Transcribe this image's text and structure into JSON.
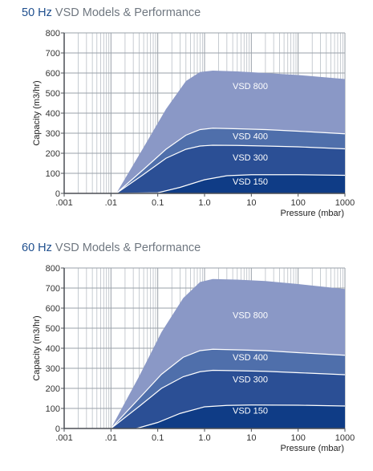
{
  "charts": [
    {
      "title_hz": "50 Hz",
      "title_rest": "VSD Models & Performance",
      "chart_data": {
        "type": "area",
        "title": "50 Hz VSD Models & Performance",
        "xlabel": "Pressure (mbar)",
        "ylabel": "Capacity (m3/hr)",
        "xscale": "log",
        "xlim": [
          0.001,
          1000
        ],
        "ylim": [
          0,
          800
        ],
        "xticks": [
          ".001",
          ".01",
          "0.1",
          "1.0",
          "10",
          "100",
          "1000"
        ],
        "yticks": [
          "0",
          "100",
          "200",
          "300",
          "400",
          "500",
          "600",
          "700",
          "800"
        ],
        "grid": true,
        "series": [
          {
            "name": "VSD 800",
            "color": "#8a98c6",
            "x": [
              0.013,
              0.05,
              0.15,
              0.4,
              0.8,
              1.5,
              5,
              20,
              100,
              1000
            ],
            "y": [
              0,
              230,
              420,
              560,
              605,
              612,
              608,
              600,
              590,
              570
            ]
          },
          {
            "name": "VSD 400",
            "color": "#4f6fab",
            "x": [
              0.013,
              0.05,
              0.15,
              0.4,
              0.8,
              1.5,
              5,
              20,
              100,
              1000
            ],
            "y": [
              0,
              120,
              220,
              290,
              318,
              325,
              322,
              318,
              310,
              297
            ]
          },
          {
            "name": "VSD 300",
            "color": "#2b4f95",
            "x": [
              0.013,
              0.05,
              0.15,
              0.4,
              0.8,
              1.5,
              5,
              20,
              100,
              1000
            ],
            "y": [
              0,
              95,
              175,
              220,
              236,
              240,
              239,
              236,
              232,
              222
            ]
          },
          {
            "name": "VSD 150",
            "color": "#0f3c86",
            "x": [
              0.013,
              0.1,
              0.3,
              1.0,
              3,
              10,
              100,
              1000
            ],
            "y": [
              0,
              3,
              30,
              68,
              88,
              93,
              93,
              90
            ]
          }
        ]
      }
    },
    {
      "title_hz": "60 Hz",
      "title_rest": "VSD Models & Performance",
      "chart_data": {
        "type": "area",
        "title": "60 Hz VSD Models & Performance",
        "xlabel": "Pressure (mbar)",
        "ylabel": "Capacity (m3/hr)",
        "xscale": "log",
        "xlim": [
          0.001,
          1000
        ],
        "ylim": [
          0,
          800
        ],
        "xticks": [
          ".001",
          ".01",
          "0.1",
          "1.0",
          "10",
          "100",
          "1000"
        ],
        "yticks": [
          "0",
          "100",
          "200",
          "300",
          "400",
          "500",
          "600",
          "700",
          "800"
        ],
        "grid": true,
        "series": [
          {
            "name": "VSD 800",
            "color": "#8a98c6",
            "x": [
              0.01,
              0.04,
              0.12,
              0.35,
              0.8,
              1.5,
              5,
              20,
              100,
              1000
            ],
            "y": [
              0,
              260,
              480,
              650,
              730,
              745,
              742,
              735,
              720,
              695
            ]
          },
          {
            "name": "VSD 400",
            "color": "#4f6fab",
            "x": [
              0.01,
              0.04,
              0.12,
              0.35,
              0.8,
              1.5,
              5,
              20,
              100,
              1000
            ],
            "y": [
              0,
              150,
              270,
              355,
              388,
              395,
              392,
              388,
              378,
              365
            ]
          },
          {
            "name": "VSD 300",
            "color": "#2b4f95",
            "x": [
              0.01,
              0.04,
              0.12,
              0.35,
              0.8,
              1.5,
              5,
              20,
              100,
              1000
            ],
            "y": [
              0,
              110,
              200,
              258,
              283,
              290,
              288,
              285,
              278,
              268
            ]
          },
          {
            "name": "VSD 150",
            "color": "#0f3c86",
            "x": [
              0.035,
              0.1,
              0.3,
              1.0,
              3,
              10,
              100,
              1000
            ],
            "y": [
              0,
              30,
              75,
              108,
              115,
              117,
              116,
              112
            ]
          }
        ]
      }
    }
  ]
}
